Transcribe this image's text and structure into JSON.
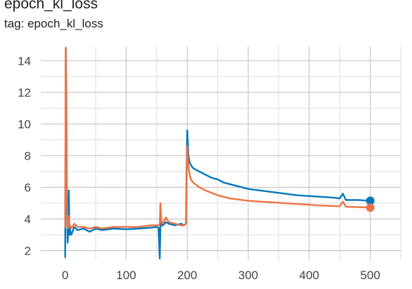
{
  "header": {
    "title": "epoch_kl_loss",
    "tag": "tag: epoch_kl_loss"
  },
  "chart_data": {
    "type": "line",
    "title": "epoch_kl_loss",
    "subtitle": "tag: epoch_kl_loss",
    "xlabel": "",
    "ylabel": "",
    "xlim": [
      -40,
      550
    ],
    "ylim": [
      1.4,
      14.9
    ],
    "x_ticks": [
      0,
      100,
      200,
      300,
      400,
      500
    ],
    "y_ticks": [
      2,
      4,
      6,
      8,
      10,
      12,
      14
    ],
    "grid": true,
    "legend": "none",
    "series": [
      {
        "color": "#0077bb",
        "end_marker": true,
        "x": [
          0,
          1,
          2,
          3,
          4,
          5,
          6,
          7,
          8,
          10,
          15,
          20,
          30,
          40,
          50,
          60,
          80,
          100,
          120,
          140,
          150,
          153,
          155,
          156,
          157,
          158,
          160,
          165,
          170,
          180,
          190,
          195,
          198,
          199,
          200,
          201,
          202,
          204,
          206,
          210,
          220,
          230,
          240,
          250,
          260,
          270,
          280,
          290,
          300,
          320,
          340,
          360,
          380,
          400,
          420,
          440,
          450,
          455,
          460,
          480,
          500
        ],
        "y": [
          1.6,
          14.8,
          9.5,
          4.5,
          2.5,
          3.3,
          5.8,
          3.0,
          3.3,
          3.0,
          3.5,
          3.3,
          3.4,
          3.2,
          3.4,
          3.3,
          3.4,
          3.35,
          3.4,
          3.45,
          3.5,
          3.45,
          1.5,
          3.5,
          4.0,
          3.6,
          3.6,
          3.8,
          3.7,
          3.6,
          3.7,
          3.6,
          3.7,
          7.0,
          9.6,
          8.9,
          8.0,
          7.6,
          7.4,
          7.2,
          7.0,
          6.8,
          6.6,
          6.5,
          6.3,
          6.2,
          6.1,
          6.0,
          5.9,
          5.8,
          5.7,
          5.6,
          5.5,
          5.45,
          5.4,
          5.35,
          5.3,
          5.6,
          5.2,
          5.2,
          5.15
        ]
      },
      {
        "color": "#ee7244",
        "end_marker": true,
        "x": [
          0,
          1,
          2,
          3,
          4,
          5,
          6,
          7,
          8,
          10,
          15,
          20,
          30,
          40,
          50,
          60,
          80,
          100,
          120,
          140,
          150,
          153,
          155,
          156,
          157,
          158,
          160,
          165,
          170,
          180,
          190,
          195,
          198,
          199,
          200,
          201,
          202,
          204,
          206,
          210,
          220,
          230,
          240,
          250,
          260,
          270,
          280,
          290,
          300,
          320,
          340,
          360,
          380,
          400,
          420,
          440,
          450,
          455,
          460,
          480,
          500
        ],
        "y": [
          3.5,
          14.8,
          12.0,
          5.0,
          3.4,
          3.7,
          4.2,
          3.5,
          3.6,
          3.4,
          3.7,
          3.5,
          3.5,
          3.4,
          3.5,
          3.4,
          3.5,
          3.5,
          3.5,
          3.6,
          3.6,
          3.6,
          3.6,
          5.0,
          4.3,
          3.8,
          3.7,
          4.1,
          3.8,
          3.7,
          3.6,
          3.6,
          3.7,
          6.0,
          8.6,
          8.0,
          7.3,
          6.8,
          6.5,
          6.3,
          6.0,
          5.8,
          5.65,
          5.5,
          5.4,
          5.3,
          5.25,
          5.2,
          5.15,
          5.1,
          5.05,
          5.0,
          4.95,
          4.9,
          4.85,
          4.82,
          4.8,
          5.1,
          4.78,
          4.75,
          4.72
        ]
      }
    ]
  }
}
